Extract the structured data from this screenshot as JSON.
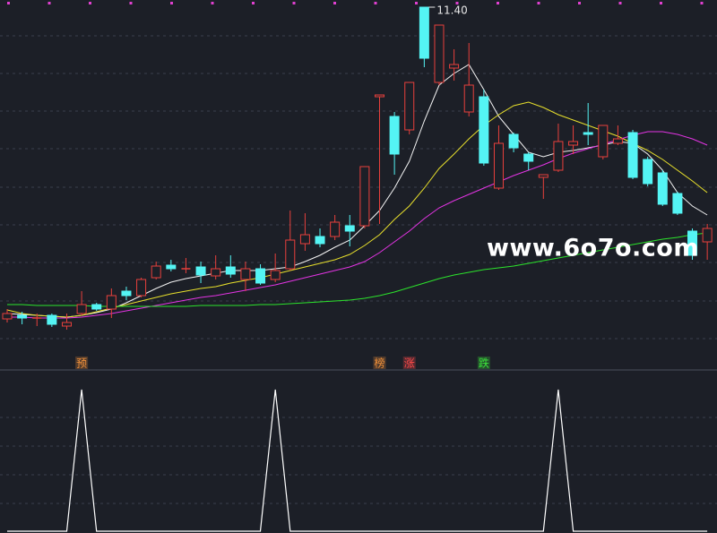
{
  "chart_data": [
    {
      "type": "candlestick",
      "open": [
        4.44,
        4.52,
        4.46,
        4.52,
        4.28,
        4.56,
        4.76,
        4.66,
        5.06,
        4.96,
        5.36,
        5.64,
        5.56,
        5.6,
        5.4,
        5.6,
        5.32,
        5.56,
        5.32,
        5.56,
        6.12,
        6.28,
        6.28,
        6.52,
        6.52,
        9.4,
        8.96,
        8.66,
        11.4,
        9.72,
        10.04,
        9.06,
        9.4,
        7.36,
        8.56,
        8.12,
        7.6,
        7.76,
        8.32,
        8.6,
        8.06,
        8.36,
        8.6,
        8.0,
        7.7,
        7.24,
        6.4,
        6.16
      ],
      "high": [
        4.66,
        4.6,
        4.56,
        4.56,
        4.56,
        5.06,
        4.8,
        5.12,
        5.16,
        5.36,
        5.72,
        5.76,
        5.8,
        5.72,
        5.86,
        5.86,
        5.72,
        5.66,
        5.9,
        6.86,
        6.8,
        6.46,
        6.76,
        6.76,
        7.84,
        9.44,
        9.06,
        9.72,
        11.4,
        11.0,
        10.46,
        10.6,
        9.56,
        8.76,
        8.6,
        8.16,
        7.66,
        8.8,
        8.76,
        9.26,
        8.76,
        8.76,
        8.66,
        8.06,
        7.76,
        7.28,
        6.46,
        6.56
      ],
      "low": [
        4.36,
        4.32,
        4.28,
        4.26,
        4.2,
        4.52,
        4.62,
        4.46,
        4.86,
        4.92,
        5.32,
        5.5,
        5.46,
        5.24,
        5.32,
        5.36,
        5.06,
        5.2,
        5.26,
        5.52,
        5.96,
        6.04,
        6.2,
        6.06,
        6.46,
        6.56,
        7.66,
        8.56,
        10.06,
        9.66,
        9.76,
        8.96,
        7.86,
        7.32,
        8.16,
        7.76,
        7.12,
        7.72,
        8.12,
        8.32,
        8.0,
        8.32,
        7.56,
        7.4,
        6.96,
        6.76,
        5.76,
        5.76
      ],
      "close": [
        4.56,
        4.46,
        4.46,
        4.32,
        4.36,
        4.76,
        4.66,
        4.96,
        4.96,
        5.32,
        5.62,
        5.56,
        5.56,
        5.42,
        5.56,
        5.44,
        5.56,
        5.24,
        5.52,
        6.2,
        6.32,
        6.12,
        6.6,
        6.4,
        7.84,
        9.44,
        8.12,
        9.72,
        10.26,
        11.0,
        10.12,
        9.66,
        7.92,
        8.36,
        8.26,
        7.96,
        7.66,
        8.4,
        8.4,
        8.56,
        8.76,
        8.46,
        7.6,
        7.46,
        7.0,
        6.8,
        5.86,
        6.46
      ],
      "high_value_labels": [
        null,
        null,
        null,
        null,
        null,
        null,
        null,
        null,
        null,
        null,
        null,
        null,
        null,
        null,
        null,
        null,
        null,
        null,
        null,
        null,
        null,
        null,
        null,
        null,
        null,
        null,
        null,
        null,
        "11.40",
        null,
        null,
        null,
        null,
        null,
        null,
        null,
        null,
        null,
        null,
        null,
        null,
        null,
        null,
        null,
        null,
        null,
        null,
        null
      ],
      "up_color": "#e8403c",
      "down_color": "#54f4f4",
      "ylim": [
        3.66,
        11.56
      ],
      "series": [
        {
          "color": "#f4f4f4",
          "values": [
            4.56,
            4.54,
            4.52,
            4.5,
            4.48,
            4.52,
            4.58,
            4.66,
            4.8,
            4.96,
            5.12,
            5.26,
            5.34,
            5.4,
            5.46,
            5.52,
            5.52,
            5.52,
            5.56,
            5.6,
            5.72,
            5.86,
            6.04,
            6.2,
            6.52,
            6.86,
            7.36,
            7.96,
            8.86,
            9.66,
            9.92,
            10.12,
            9.56,
            8.96,
            8.56,
            8.16,
            8.06,
            8.16,
            8.2,
            8.26,
            8.32,
            8.4,
            8.36,
            8.12,
            7.76,
            7.26,
            6.96,
            6.76
          ]
        },
        {
          "color": "#e8e02c",
          "values": [
            4.64,
            4.56,
            4.52,
            4.5,
            4.48,
            4.52,
            4.6,
            4.68,
            4.76,
            4.84,
            4.92,
            5.0,
            5.06,
            5.12,
            5.16,
            5.24,
            5.3,
            5.36,
            5.44,
            5.52,
            5.6,
            5.68,
            5.76,
            5.88,
            6.08,
            6.32,
            6.66,
            6.96,
            7.36,
            7.8,
            8.12,
            8.46,
            8.76,
            9.0,
            9.2,
            9.28,
            9.16,
            9.0,
            8.88,
            8.76,
            8.64,
            8.52,
            8.36,
            8.2,
            8.0,
            7.76,
            7.52,
            7.26
          ]
        },
        {
          "color": "#e434e4",
          "values": [
            4.48,
            4.48,
            4.46,
            4.46,
            4.46,
            4.48,
            4.52,
            4.56,
            4.62,
            4.68,
            4.74,
            4.8,
            4.86,
            4.92,
            4.96,
            5.02,
            5.08,
            5.14,
            5.2,
            5.28,
            5.36,
            5.44,
            5.52,
            5.6,
            5.72,
            5.92,
            6.16,
            6.4,
            6.68,
            6.92,
            7.08,
            7.22,
            7.36,
            7.5,
            7.64,
            7.76,
            7.88,
            8.02,
            8.14,
            8.24,
            8.34,
            8.44,
            8.54,
            8.62,
            8.62,
            8.56,
            8.46,
            8.32
          ]
        },
        {
          "color": "#2ce42c",
          "values": [
            4.76,
            4.76,
            4.74,
            4.74,
            4.74,
            4.74,
            4.72,
            4.72,
            4.72,
            4.72,
            4.72,
            4.72,
            4.72,
            4.74,
            4.74,
            4.74,
            4.74,
            4.76,
            4.76,
            4.78,
            4.8,
            4.82,
            4.84,
            4.86,
            4.9,
            4.96,
            5.04,
            5.14,
            5.24,
            5.34,
            5.42,
            5.48,
            5.54,
            5.58,
            5.62,
            5.68,
            5.74,
            5.8,
            5.86,
            5.92,
            5.98,
            6.04,
            6.1,
            6.16,
            6.22,
            6.26,
            6.32,
            6.36
          ]
        }
      ],
      "signals": [
        null,
        null,
        null,
        null,
        null,
        {
          "text": "预",
          "color": "#f0903a"
        },
        null,
        null,
        null,
        null,
        null,
        null,
        null,
        null,
        null,
        null,
        null,
        null,
        null,
        null,
        null,
        null,
        null,
        null,
        null,
        {
          "text": "榜",
          "color": "#f0903a"
        },
        null,
        {
          "text": "涨",
          "color": "#ff4a4a"
        },
        null,
        null,
        null,
        null,
        {
          "text": "跌",
          "color": "#3ce43c"
        },
        null,
        null,
        null,
        null,
        null,
        null,
        null,
        null,
        null,
        null,
        null,
        null,
        null,
        null,
        null
      ],
      "watermark": "www.6o7o.com"
    },
    {
      "type": "line",
      "color": "#ffffff",
      "ylim": [
        0,
        1
      ],
      "values": [
        0,
        0,
        0,
        0,
        0,
        1,
        0,
        0,
        0,
        0,
        0,
        0,
        0,
        0,
        0,
        0,
        0,
        0,
        1,
        0,
        0,
        0,
        0,
        0,
        0,
        0,
        0,
        0,
        0,
        0,
        0,
        0,
        0,
        0,
        0,
        0,
        0,
        1,
        0,
        0,
        0,
        0,
        0,
        0,
        0,
        0,
        0,
        0
      ]
    }
  ]
}
